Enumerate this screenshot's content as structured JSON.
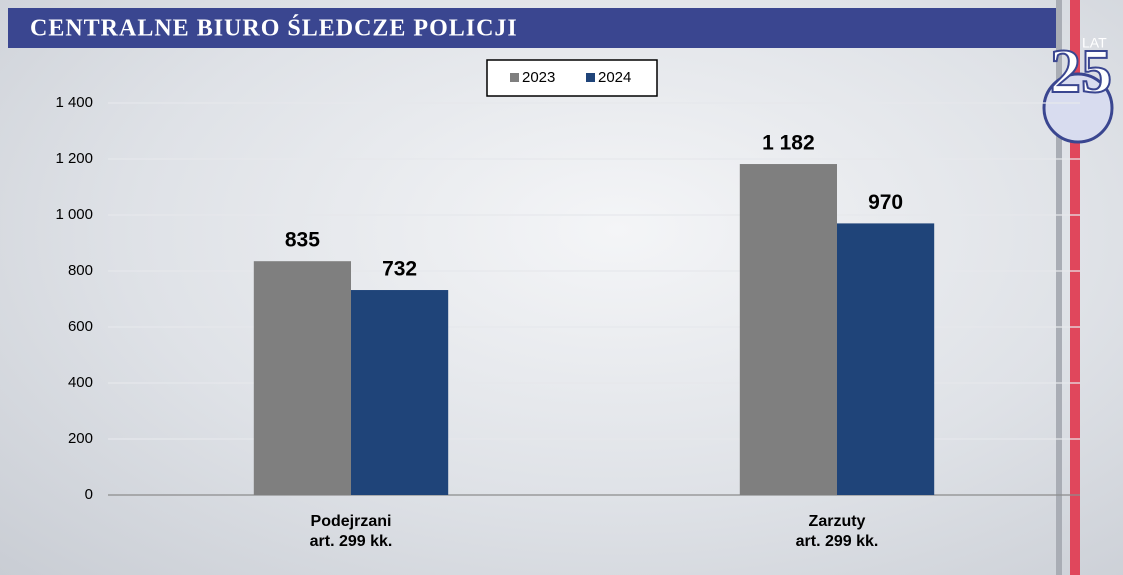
{
  "header": {
    "title": "CENTRALNE BIURO ŚLEDCZE POLICJI"
  },
  "logo": {
    "number": "25",
    "text": "LAT"
  },
  "chart_data": {
    "type": "bar",
    "categories": [
      "Podejrzani\nart. 299 kk.",
      "Zarzuty\nart. 299 kk."
    ],
    "series": [
      {
        "name": "2023",
        "color": "#7f7f7f",
        "values": [
          835,
          1182
        ],
        "value_labels": [
          "835",
          "1 182"
        ]
      },
      {
        "name": "2024",
        "color": "#1f4479",
        "values": [
          732,
          970
        ],
        "value_labels": [
          "732",
          "970"
        ]
      }
    ],
    "ylim": [
      0,
      1400
    ],
    "yticks": [
      0,
      200,
      400,
      600,
      800,
      {
        "value": 1000,
        "label": "1 000"
      },
      {
        "value": 1200,
        "label": "1 200"
      },
      {
        "value": 1400,
        "label": "1 400"
      }
    ],
    "grid": true,
    "legend": "top"
  }
}
